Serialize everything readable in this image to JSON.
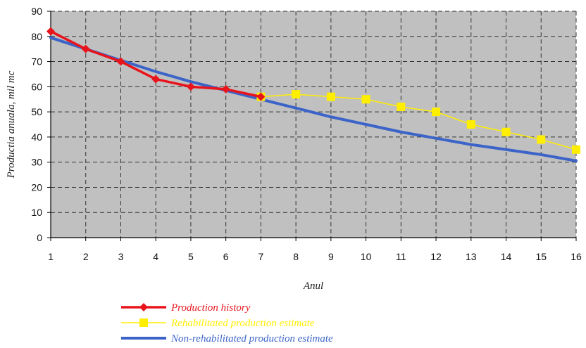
{
  "chart_data": {
    "type": "line",
    "xlabel": "Anul",
    "ylabel": "Productia anuala, mil mc",
    "x": [
      1,
      2,
      3,
      4,
      5,
      6,
      7,
      8,
      9,
      10,
      11,
      12,
      13,
      14,
      15,
      16
    ],
    "xlim": [
      1,
      16
    ],
    "ylim": [
      0,
      90
    ],
    "yticks": [
      0,
      10,
      20,
      30,
      40,
      50,
      60,
      70,
      80,
      90
    ],
    "grid": true,
    "legend_position": "bottom",
    "colors": {
      "plot_background": "#c0c0c0",
      "grid": "#333333"
    },
    "series": [
      {
        "name": "Production history",
        "color": "#e8141c",
        "marker": "diamond",
        "x": [
          1,
          2,
          3,
          4,
          5,
          6,
          7
        ],
        "values": [
          82,
          75,
          70,
          63,
          60,
          59,
          56
        ]
      },
      {
        "name": "Rehabilitated production estimate",
        "color": "#ffee00",
        "marker": "square",
        "x": [
          7,
          8,
          9,
          10,
          11,
          12,
          13,
          14,
          15,
          16
        ],
        "values": [
          56,
          57,
          56,
          55,
          52,
          50,
          45,
          42,
          39,
          35
        ]
      },
      {
        "name": "Non-rehabilitated production estimate",
        "color": "#3c64c8",
        "marker": "none",
        "x": [
          1,
          2,
          3,
          4,
          5,
          6,
          7,
          8,
          9,
          10,
          11,
          12,
          13,
          14,
          15,
          16
        ],
        "values": [
          79.5,
          75,
          70.5,
          66,
          62,
          58.5,
          55,
          51.5,
          48,
          45,
          42,
          39.5,
          37,
          35,
          33,
          30.5
        ]
      }
    ]
  }
}
